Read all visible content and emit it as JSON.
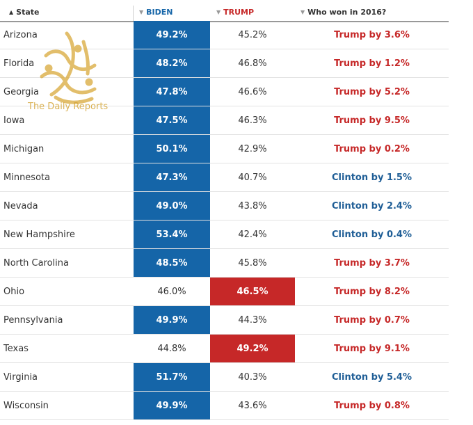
{
  "header": {
    "state": "State",
    "biden": "BIDEN",
    "trump": "TRUMP",
    "won2016": "Who won in 2016?"
  },
  "rows": [
    {
      "state": "Arizona",
      "biden": "49.2%",
      "trump": "45.2%",
      "won": "Trump by 3.6%",
      "leader": "biden",
      "won_party": "trump"
    },
    {
      "state": "Florida",
      "biden": "48.2%",
      "trump": "46.8%",
      "won": "Trump by 1.2%",
      "leader": "biden",
      "won_party": "trump"
    },
    {
      "state": "Georgia",
      "biden": "47.8%",
      "trump": "46.6%",
      "won": "Trump by 5.2%",
      "leader": "biden",
      "won_party": "trump"
    },
    {
      "state": "Iowa",
      "biden": "47.5%",
      "trump": "46.3%",
      "won": "Trump by 9.5%",
      "leader": "biden",
      "won_party": "trump"
    },
    {
      "state": "Michigan",
      "biden": "50.1%",
      "trump": "42.9%",
      "won": "Trump by 0.2%",
      "leader": "biden",
      "won_party": "trump"
    },
    {
      "state": "Minnesota",
      "biden": "47.3%",
      "trump": "40.7%",
      "won": "Clinton by 1.5%",
      "leader": "biden",
      "won_party": "clinton"
    },
    {
      "state": "Nevada",
      "biden": "49.0%",
      "trump": "43.8%",
      "won": "Clinton by 2.4%",
      "leader": "biden",
      "won_party": "clinton"
    },
    {
      "state": "New Hampshire",
      "biden": "53.4%",
      "trump": "42.4%",
      "won": "Clinton by 0.4%",
      "leader": "biden",
      "won_party": "clinton"
    },
    {
      "state": "North Carolina",
      "biden": "48.5%",
      "trump": "45.8%",
      "won": "Trump by 3.7%",
      "leader": "biden",
      "won_party": "trump"
    },
    {
      "state": "Ohio",
      "biden": "46.0%",
      "trump": "46.5%",
      "won": "Trump by 8.2%",
      "leader": "trump",
      "won_party": "trump"
    },
    {
      "state": "Pennsylvania",
      "biden": "49.9%",
      "trump": "44.3%",
      "won": "Trump by 0.7%",
      "leader": "biden",
      "won_party": "trump"
    },
    {
      "state": "Texas",
      "biden": "44.8%",
      "trump": "49.2%",
      "won": "Trump by 9.1%",
      "leader": "trump",
      "won_party": "trump"
    },
    {
      "state": "Virginia",
      "biden": "51.7%",
      "trump": "40.3%",
      "won": "Clinton by 5.4%",
      "leader": "biden",
      "won_party": "clinton"
    },
    {
      "state": "Wisconsin",
      "biden": "49.9%",
      "trump": "43.6%",
      "won": "Trump by 0.8%",
      "leader": "biden",
      "won_party": "trump"
    }
  ],
  "watermark": {
    "text": "The Daily Reports",
    "logo_glyphs": "الجزيرة",
    "icon": "calligraphy-logo-icon"
  },
  "sort": {
    "column": "State",
    "direction": "ascending",
    "icons": [
      "sort-up-icon",
      "sort-down-icon"
    ]
  },
  "colors": {
    "biden": "#1565a8",
    "trump": "#c62828",
    "watermark": "#d4a537"
  }
}
